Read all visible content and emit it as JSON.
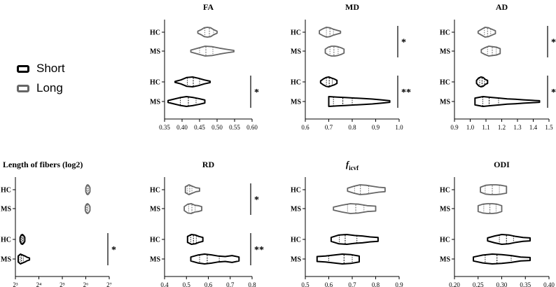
{
  "legend": {
    "entries": [
      {
        "label": "Short",
        "color": "#000000"
      },
      {
        "label": "Long",
        "color": "#666666"
      }
    ]
  },
  "colors": {
    "short": "#000000",
    "long": "#666666"
  },
  "chart_data": [
    {
      "type": "violin",
      "title": "FA",
      "title_italic_part": "",
      "xlim": [
        0.35,
        0.6
      ],
      "ticks": [
        "0.35",
        "0.40",
        "0.45",
        "0.50",
        "0.55",
        "0.60"
      ],
      "ylabels": [
        "HC",
        "MS",
        "HC",
        "MS"
      ],
      "series": [
        {
          "group": "Long",
          "label": "HC",
          "min": 0.445,
          "q1": 0.465,
          "median": 0.478,
          "q3": 0.49,
          "max": 0.5,
          "shape": [
            0.2,
            0.5,
            0.9,
            1.0,
            0.9,
            0.5,
            0.2
          ]
        },
        {
          "group": "Long",
          "label": "MS",
          "min": 0.425,
          "q1": 0.45,
          "median": 0.468,
          "q3": 0.488,
          "max": 0.548,
          "shape": [
            0.2,
            0.6,
            1.0,
            0.9,
            0.6,
            0.35,
            0.15
          ]
        },
        {
          "group": "Short",
          "label": "HC",
          "min": 0.38,
          "q1": 0.415,
          "median": 0.432,
          "q3": 0.45,
          "max": 0.48,
          "shape": [
            0.1,
            0.4,
            0.9,
            1.0,
            0.75,
            0.4,
            0.15
          ]
        },
        {
          "group": "Short",
          "label": "MS",
          "min": 0.36,
          "q1": 0.395,
          "median": 0.418,
          "q3": 0.44,
          "max": 0.465,
          "shape": [
            0.2,
            0.5,
            0.8,
            1.0,
            0.85,
            0.6,
            0.3
          ]
        }
      ],
      "significance": [
        {
          "between": [
            2,
            3
          ],
          "label": "*"
        }
      ]
    },
    {
      "type": "violin",
      "title": "MD",
      "title_italic_part": "",
      "xlim": [
        0.6,
        1.0
      ],
      "ticks": [
        "0.6",
        "0.7",
        "0.8",
        "0.9",
        "1.0"
      ],
      "ylabels": [
        "HC",
        "MS",
        "HC",
        "MS"
      ],
      "series": [
        {
          "group": "Long",
          "label": "HC",
          "min": 0.66,
          "q1": 0.69,
          "median": 0.705,
          "q3": 0.72,
          "max": 0.75,
          "shape": [
            0.3,
            0.7,
            1.0,
            0.9,
            0.6,
            0.4,
            0.2
          ]
        },
        {
          "group": "Long",
          "label": "MS",
          "min": 0.685,
          "q1": 0.705,
          "median": 0.722,
          "q3": 0.74,
          "max": 0.765,
          "shape": [
            0.4,
            0.8,
            1.0,
            1.0,
            0.9,
            0.7,
            0.4
          ]
        },
        {
          "group": "Short",
          "label": "HC",
          "min": 0.665,
          "q1": 0.69,
          "median": 0.702,
          "q3": 0.715,
          "max": 0.735,
          "shape": [
            0.2,
            0.6,
            0.9,
            1.0,
            0.8,
            0.6,
            0.3
          ]
        },
        {
          "group": "Short",
          "label": "MS",
          "min": 0.7,
          "q1": 0.72,
          "median": 0.76,
          "q3": 0.8,
          "max": 0.96,
          "shape": [
            1.0,
            0.9,
            0.8,
            0.7,
            0.6,
            0.5,
            0.35,
            0.15
          ]
        }
      ],
      "significance": [
        {
          "between": [
            0,
            1
          ],
          "label": "*"
        },
        {
          "between": [
            2,
            3
          ],
          "label": "**"
        }
      ]
    },
    {
      "type": "violin",
      "title": "AD",
      "title_italic_part": "",
      "xlim": [
        0.9,
        1.5
      ],
      "ticks": [
        "0.9",
        "1.0",
        "1.1",
        "1.2",
        "1.3",
        "1.4",
        "1.5"
      ],
      "ylabels": [
        "HC",
        "MS",
        "HC",
        "MS"
      ],
      "series": [
        {
          "group": "Long",
          "label": "HC",
          "min": 1.05,
          "q1": 1.09,
          "median": 1.11,
          "q3": 1.13,
          "max": 1.16,
          "shape": [
            0.2,
            0.6,
            1.0,
            0.9,
            0.6,
            0.3
          ]
        },
        {
          "group": "Long",
          "label": "MS",
          "min": 1.07,
          "q1": 1.11,
          "median": 1.14,
          "q3": 1.165,
          "max": 1.19,
          "shape": [
            0.3,
            0.7,
            1.0,
            0.9,
            0.8,
            0.5
          ]
        },
        {
          "group": "Short",
          "label": "HC",
          "min": 1.04,
          "q1": 1.06,
          "median": 1.075,
          "q3": 1.09,
          "max": 1.11,
          "shape": [
            0.3,
            0.8,
            1.0,
            0.9,
            0.5,
            0.3
          ]
        },
        {
          "group": "Short",
          "label": "MS",
          "min": 1.03,
          "q1": 1.08,
          "median": 1.12,
          "q3": 1.18,
          "max": 1.44,
          "shape": [
            0.7,
            1.0,
            0.85,
            0.7,
            0.55,
            0.45,
            0.35,
            0.25,
            0.15
          ]
        }
      ],
      "significance": [
        {
          "between": [
            0,
            1
          ],
          "label": "*"
        },
        {
          "between": [
            2,
            3
          ],
          "label": "*"
        }
      ]
    },
    {
      "type": "violin",
      "title": "Length of fibers (log2)",
      "title_italic_part": "",
      "xlim": [
        3,
        7
      ],
      "tick_values": [
        3,
        4,
        5,
        6,
        7
      ],
      "ticks": [
        "2³",
        "2⁴",
        "2⁵",
        "2⁶",
        "2⁷"
      ],
      "ylabels": [
        "HC",
        "MS",
        "HC",
        "MS"
      ],
      "series": [
        {
          "group": "Long",
          "label": "HC",
          "min": 6.0,
          "q1": 6.04,
          "median": 6.08,
          "q3": 6.12,
          "max": 6.18,
          "shape": [
            0.4,
            0.9,
            1.0,
            0.8,
            0.4
          ]
        },
        {
          "group": "Long",
          "label": "MS",
          "min": 5.98,
          "q1": 6.02,
          "median": 6.06,
          "q3": 6.1,
          "max": 6.18,
          "shape": [
            0.4,
            0.9,
            1.0,
            0.8,
            0.4
          ]
        },
        {
          "group": "Short",
          "label": "HC",
          "min": 3.2,
          "q1": 3.26,
          "median": 3.3,
          "q3": 3.34,
          "max": 3.4,
          "shape": [
            0.4,
            0.9,
            1.0,
            0.8,
            0.4
          ]
        },
        {
          "group": "Short",
          "label": "MS",
          "min": 3.12,
          "q1": 3.2,
          "median": 3.26,
          "q3": 3.34,
          "max": 3.6,
          "shape": [
            0.6,
            1.0,
            0.8,
            0.6,
            0.35,
            0.2
          ]
        }
      ],
      "significance": [
        {
          "between": [
            2,
            3
          ],
          "label": "*"
        }
      ]
    },
    {
      "type": "violin",
      "title": "RD",
      "title_italic_part": "",
      "xlim": [
        0.4,
        0.8
      ],
      "ticks": [
        "0.4",
        "0.5",
        "0.6",
        "0.7",
        "0.8"
      ],
      "ylabels": [
        "HC",
        "MS",
        "HC",
        "MS"
      ],
      "series": [
        {
          "group": "Long",
          "label": "HC",
          "min": 0.495,
          "q1": 0.505,
          "median": 0.515,
          "q3": 0.525,
          "max": 0.56,
          "shape": [
            0.6,
            1.0,
            0.7,
            0.4,
            0.3
          ]
        },
        {
          "group": "Long",
          "label": "MS",
          "min": 0.49,
          "q1": 0.51,
          "median": 0.525,
          "q3": 0.54,
          "max": 0.57,
          "shape": [
            0.4,
            0.9,
            1.0,
            0.7,
            0.6,
            0.4
          ]
        },
        {
          "group": "Short",
          "label": "HC",
          "min": 0.505,
          "q1": 0.52,
          "median": 0.532,
          "q3": 0.545,
          "max": 0.575,
          "shape": [
            0.6,
            1.0,
            0.9,
            0.6,
            0.4
          ]
        },
        {
          "group": "Short",
          "label": "MS",
          "min": 0.52,
          "q1": 0.56,
          "median": 0.595,
          "q3": 0.65,
          "max": 0.74,
          "shape": [
            0.4,
            0.8,
            1.0,
            0.85,
            0.6,
            0.5,
            0.7,
            0.4
          ]
        }
      ],
      "significance": [
        {
          "between": [
            0,
            1
          ],
          "label": "*"
        },
        {
          "between": [
            2,
            3
          ],
          "label": "**"
        }
      ]
    },
    {
      "type": "violin",
      "title": "f",
      "title_italic_part": "f",
      "title_subscript": "icvf",
      "xlim": [
        0.5,
        0.9
      ],
      "ticks": [
        "0.5",
        "0.6",
        "0.7",
        "0.8",
        "0.9"
      ],
      "ylabels": [
        "HC",
        "MS",
        "HC",
        "MS"
      ],
      "series": [
        {
          "group": "Long",
          "label": "HC",
          "min": 0.68,
          "q1": 0.71,
          "median": 0.735,
          "q3": 0.77,
          "max": 0.84,
          "shape": [
            0.3,
            0.7,
            1.0,
            0.9,
            0.7,
            0.5,
            0.4
          ]
        },
        {
          "group": "Long",
          "label": "MS",
          "min": 0.62,
          "q1": 0.68,
          "median": 0.715,
          "q3": 0.75,
          "max": 0.8,
          "shape": [
            0.3,
            0.7,
            1.0,
            0.9,
            0.6,
            0.5
          ]
        },
        {
          "group": "Short",
          "label": "HC",
          "min": 0.61,
          "q1": 0.645,
          "median": 0.67,
          "q3": 0.72,
          "max": 0.81,
          "shape": [
            0.4,
            0.9,
            1.0,
            0.8,
            0.7,
            0.5,
            0.4
          ]
        },
        {
          "group": "Short",
          "label": "MS",
          "min": 0.55,
          "q1": 0.6,
          "median": 0.665,
          "q3": 0.7,
          "max": 0.73,
          "shape": [
            0.5,
            0.6,
            0.8,
            1.0,
            0.9,
            0.6
          ]
        }
      ],
      "significance": []
    },
    {
      "type": "violin",
      "title": "ODI",
      "title_italic_part": "",
      "xlim": [
        0.2,
        0.4
      ],
      "ticks": [
        "0.20",
        "0.25",
        "0.30",
        "0.35",
        "0.40"
      ],
      "ylabels": [
        "HC",
        "MS",
        "HC",
        "MS"
      ],
      "series": [
        {
          "group": "Long",
          "label": "HC",
          "min": 0.255,
          "q1": 0.265,
          "median": 0.28,
          "q3": 0.295,
          "max": 0.31,
          "shape": [
            0.5,
            0.9,
            1.0,
            1.0,
            0.9,
            0.7
          ]
        },
        {
          "group": "Long",
          "label": "MS",
          "min": 0.25,
          "q1": 0.262,
          "median": 0.275,
          "q3": 0.288,
          "max": 0.3,
          "shape": [
            0.6,
            0.9,
            1.0,
            1.0,
            0.9,
            0.6
          ]
        },
        {
          "group": "Short",
          "label": "HC",
          "min": 0.27,
          "q1": 0.295,
          "median": 0.31,
          "q3": 0.325,
          "max": 0.36,
          "shape": [
            0.3,
            0.7,
            1.0,
            0.9,
            0.6,
            0.4,
            0.3
          ]
        },
        {
          "group": "Short",
          "label": "MS",
          "min": 0.24,
          "q1": 0.265,
          "median": 0.29,
          "q3": 0.32,
          "max": 0.36,
          "shape": [
            0.4,
            0.8,
            1.0,
            0.9,
            0.7,
            0.4,
            0.3
          ]
        }
      ],
      "significance": []
    }
  ]
}
